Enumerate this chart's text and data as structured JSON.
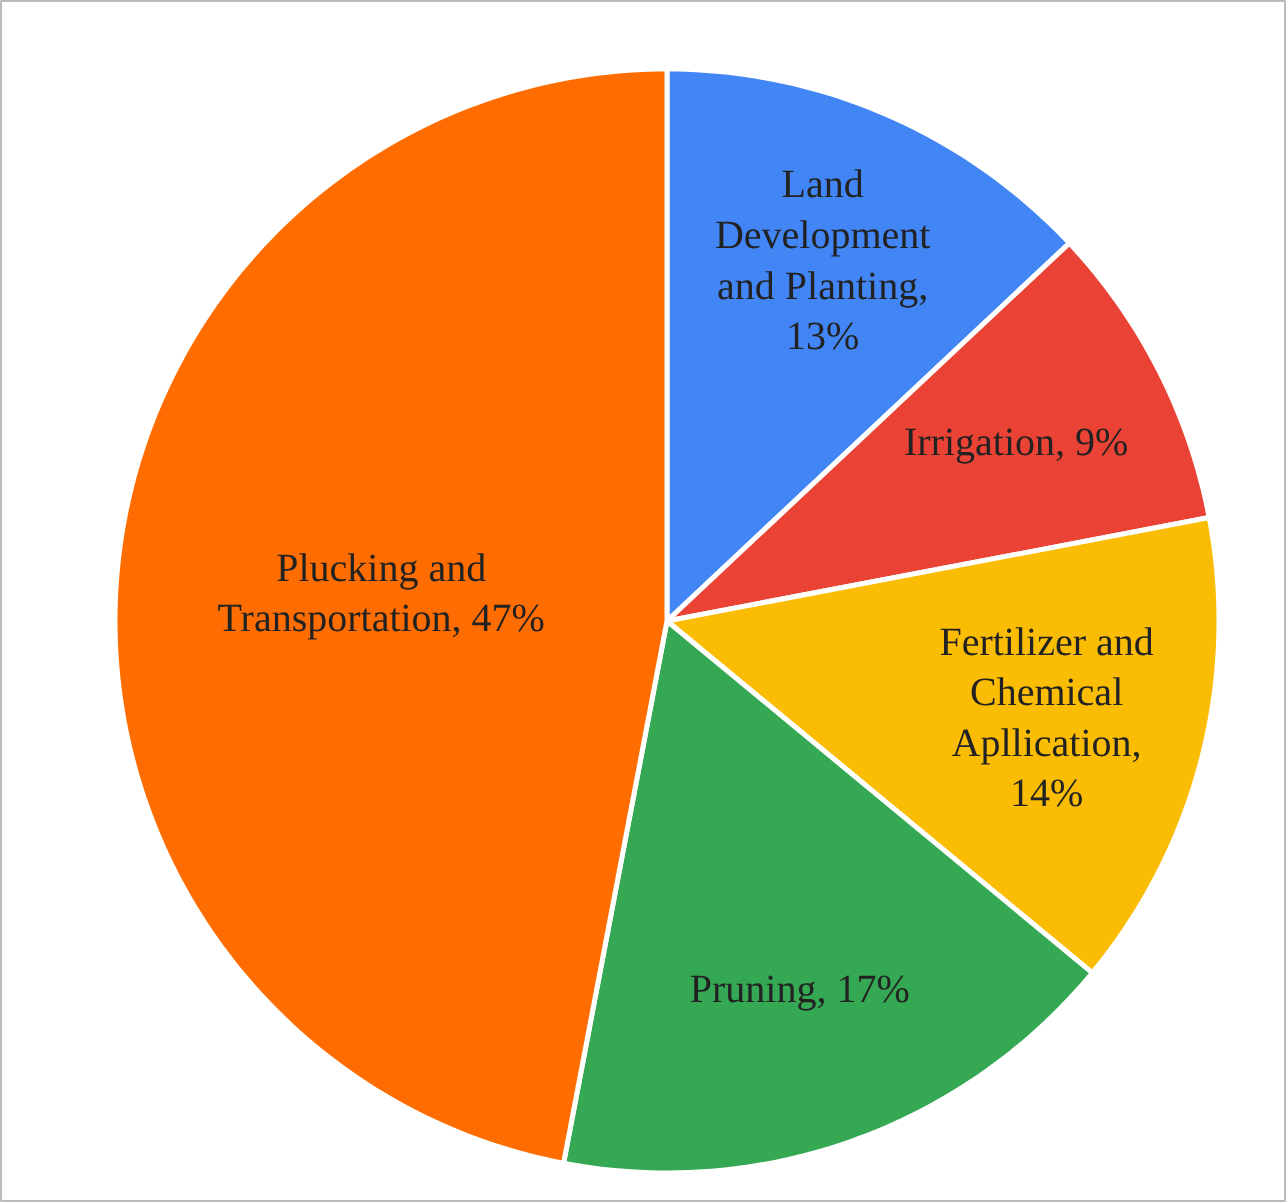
{
  "chart_data": {
    "type": "pie",
    "categories": [
      "Land Development and Planting, 13%",
      "Irrigation, 9%",
      "Fertilizer and Chemical Apllication, 14%",
      "Pruning, 17%",
      "Plucking and Transportation, 47%"
    ],
    "values": [
      13,
      9,
      14,
      17,
      47
    ],
    "colors": [
      "#4285f4",
      "#ea4335",
      "#fbbc04",
      "#34a853",
      "#ff6d01"
    ]
  }
}
